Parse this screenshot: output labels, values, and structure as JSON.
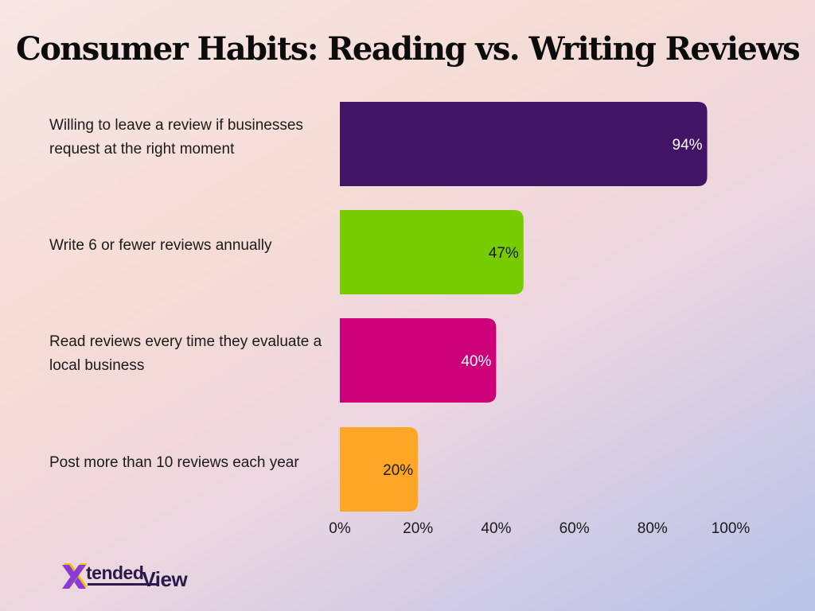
{
  "chart_data": {
    "type": "bar",
    "orientation": "horizontal",
    "title": "Consumer Habits: Reading vs. Writing Reviews",
    "categories": [
      "Willing to leave a review if businesses request at the right moment",
      "Write 6 or fewer reviews annually",
      "Read reviews every time they evaluate a local business",
      "Post more than 10 reviews each year"
    ],
    "values": [
      94,
      47,
      40,
      20
    ],
    "data_labels": [
      "94%",
      "47%",
      "40%",
      "20%"
    ],
    "colors": [
      "#421466",
      "#76cc00",
      "#cc0078",
      "#ffa626"
    ],
    "label_colors": [
      "#ffffff",
      "#1a1a1a",
      "#ffffff",
      "#1a1a1a"
    ],
    "xlim": [
      0,
      100
    ],
    "x_ticks": [
      0,
      20,
      40,
      60,
      80,
      100
    ],
    "x_tick_labels": [
      "0%",
      "20%",
      "40%",
      "60%",
      "80%",
      "100%"
    ],
    "grid": false,
    "legend": "none"
  },
  "logo": {
    "brand_primary": "tended",
    "brand_secondary": "View",
    "text_color": "#2a1a4a",
    "mark_colors": [
      "#f2c400",
      "#8a3ad6"
    ]
  }
}
